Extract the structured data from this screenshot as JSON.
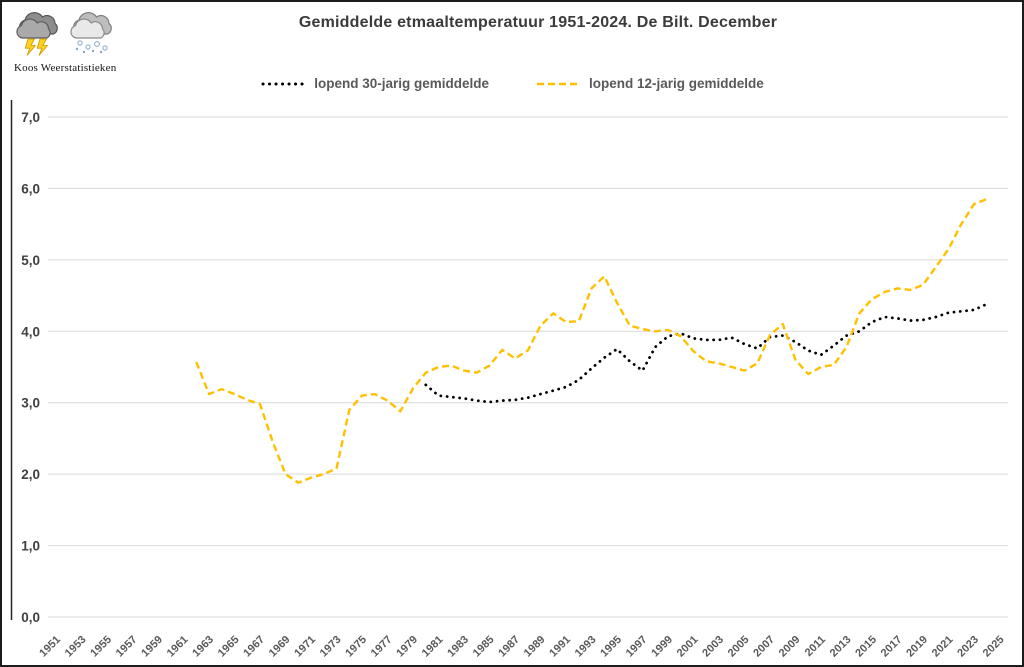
{
  "header": {
    "logo_text": "Koos Weerstatistieken",
    "title": "Gemiddelde etmaaltemperatuur 1951-2024. De Bilt. December"
  },
  "legend": [
    {
      "label": "lopend 30-jarig gemiddelde",
      "color": "#000000",
      "style": "dotted"
    },
    {
      "label": "lopend 12-jarig gemiddelde",
      "color": "#FFC000",
      "style": "dashed"
    }
  ],
  "colors": {
    "gridline": "#d9d9d9",
    "axis_line": "#262626",
    "y_label_text": "#404040",
    "x_label_text": "#595959",
    "title_text": "#3b3b3b",
    "series_30yr": "#000000",
    "series_12yr": "#FFC000"
  },
  "chart_data": {
    "type": "line",
    "title": "Gemiddelde etmaaltemperatuur 1951-2024. De Bilt. December",
    "xlabel": "",
    "ylabel": "",
    "ylim": [
      0,
      7
    ],
    "ytick_step": 1,
    "ytick_labels": [
      "0,0",
      "1,0",
      "2,0",
      "3,0",
      "4,0",
      "5,0",
      "6,0",
      "7,0"
    ],
    "xlim": [
      1951,
      2025
    ],
    "xtick_labels": [
      "1951",
      "1953",
      "1955",
      "1957",
      "1959",
      "1961",
      "1963",
      "1965",
      "1967",
      "1969",
      "1971",
      "1973",
      "1975",
      "1977",
      "1979",
      "1981",
      "1983",
      "1985",
      "1987",
      "1989",
      "1991",
      "1993",
      "1995",
      "1997",
      "1999",
      "2001",
      "2003",
      "2005",
      "2007",
      "2009",
      "2011",
      "2013",
      "2015",
      "2017",
      "2019",
      "2021",
      "2023",
      "2025"
    ],
    "grid": "horizontal",
    "legend_position": "top-center",
    "series": [
      {
        "name": "lopend 30-jarig gemiddelde",
        "color": "#000000",
        "style": "dotted",
        "x": [
          1980,
          1981,
          1982,
          1983,
          1984,
          1985,
          1986,
          1987,
          1988,
          1989,
          1990,
          1991,
          1992,
          1993,
          1994,
          1995,
          1996,
          1997,
          1998,
          1999,
          2000,
          2001,
          2002,
          2003,
          2004,
          2005,
          2006,
          2007,
          2008,
          2009,
          2010,
          2011,
          2012,
          2013,
          2014,
          2015,
          2016,
          2017,
          2018,
          2019,
          2020,
          2021,
          2022,
          2023,
          2024
        ],
        "values": [
          3.25,
          3.1,
          3.08,
          3.06,
          3.03,
          3.01,
          3.03,
          3.04,
          3.07,
          3.12,
          3.17,
          3.22,
          3.32,
          3.48,
          3.63,
          3.75,
          3.58,
          3.45,
          3.78,
          3.93,
          3.97,
          3.9,
          3.88,
          3.88,
          3.91,
          3.82,
          3.76,
          3.92,
          3.94,
          3.85,
          3.73,
          3.67,
          3.8,
          3.94,
          4.0,
          4.13,
          4.2,
          4.18,
          4.15,
          4.16,
          4.2,
          4.26,
          4.28,
          4.3,
          4.38
        ]
      },
      {
        "name": "lopend 12-jarig gemiddelde",
        "color": "#FFC000",
        "style": "dashed",
        "x": [
          1962,
          1963,
          1964,
          1965,
          1966,
          1967,
          1968,
          1969,
          1970,
          1971,
          1972,
          1973,
          1974,
          1975,
          1976,
          1977,
          1978,
          1979,
          1980,
          1981,
          1982,
          1983,
          1984,
          1985,
          1986,
          1987,
          1988,
          1989,
          1990,
          1991,
          1992,
          1993,
          1994,
          1995,
          1996,
          1997,
          1998,
          1999,
          2000,
          2001,
          2002,
          2003,
          2004,
          2005,
          2006,
          2007,
          2008,
          2009,
          2010,
          2011,
          2012,
          2013,
          2014,
          2015,
          2016,
          2017,
          2018,
          2019,
          2020,
          2021,
          2022,
          2023,
          2024
        ],
        "values": [
          3.57,
          3.12,
          3.19,
          3.12,
          3.04,
          2.98,
          2.45,
          2.0,
          1.88,
          1.95,
          2.0,
          2.08,
          2.9,
          3.1,
          3.12,
          3.03,
          2.88,
          3.2,
          3.42,
          3.5,
          3.52,
          3.45,
          3.42,
          3.52,
          3.74,
          3.62,
          3.73,
          4.08,
          4.25,
          4.13,
          4.14,
          4.6,
          4.77,
          4.4,
          4.08,
          4.03,
          4.0,
          4.02,
          3.93,
          3.72,
          3.58,
          3.55,
          3.5,
          3.45,
          3.55,
          3.95,
          4.1,
          3.6,
          3.4,
          3.5,
          3.53,
          3.78,
          4.25,
          4.45,
          4.55,
          4.6,
          4.58,
          4.65,
          4.9,
          5.15,
          5.5,
          5.78,
          5.85
        ]
      }
    ]
  }
}
